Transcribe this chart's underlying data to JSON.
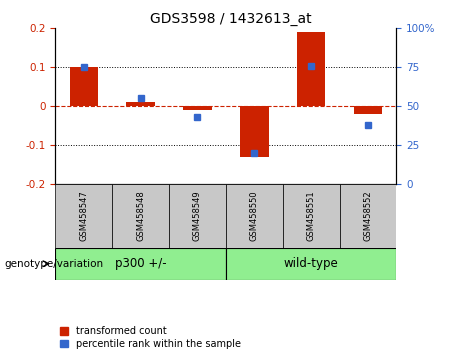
{
  "title": "GDS3598 / 1432613_at",
  "samples": [
    "GSM458547",
    "GSM458548",
    "GSM458549",
    "GSM458550",
    "GSM458551",
    "GSM458552"
  ],
  "red_values": [
    0.1,
    0.01,
    -0.01,
    -0.13,
    0.19,
    -0.02
  ],
  "blue_values_pct": [
    75,
    55,
    43,
    20,
    76,
    38
  ],
  "ylim_left": [
    -0.2,
    0.2
  ],
  "ylim_right": [
    0,
    100
  ],
  "yticks_left": [
    -0.2,
    -0.1,
    0.0,
    0.1,
    0.2
  ],
  "yticks_right": [
    0,
    25,
    50,
    75,
    100
  ],
  "red_color": "#CC2200",
  "blue_color": "#3366CC",
  "bar_width": 0.5,
  "blue_marker_size": 5,
  "legend_label_red": "transformed count",
  "legend_label_blue": "percentile rank within the sample",
  "group_label": "genotype/variation",
  "group_labels": [
    "p300 +/-",
    "wild-type"
  ],
  "group_colors": [
    "#90EE90",
    "#90EE90"
  ],
  "group_ranges": [
    [
      0,
      2
    ],
    [
      3,
      5
    ]
  ],
  "cell_color": "#C8C8C8",
  "background_color": "#ffffff"
}
